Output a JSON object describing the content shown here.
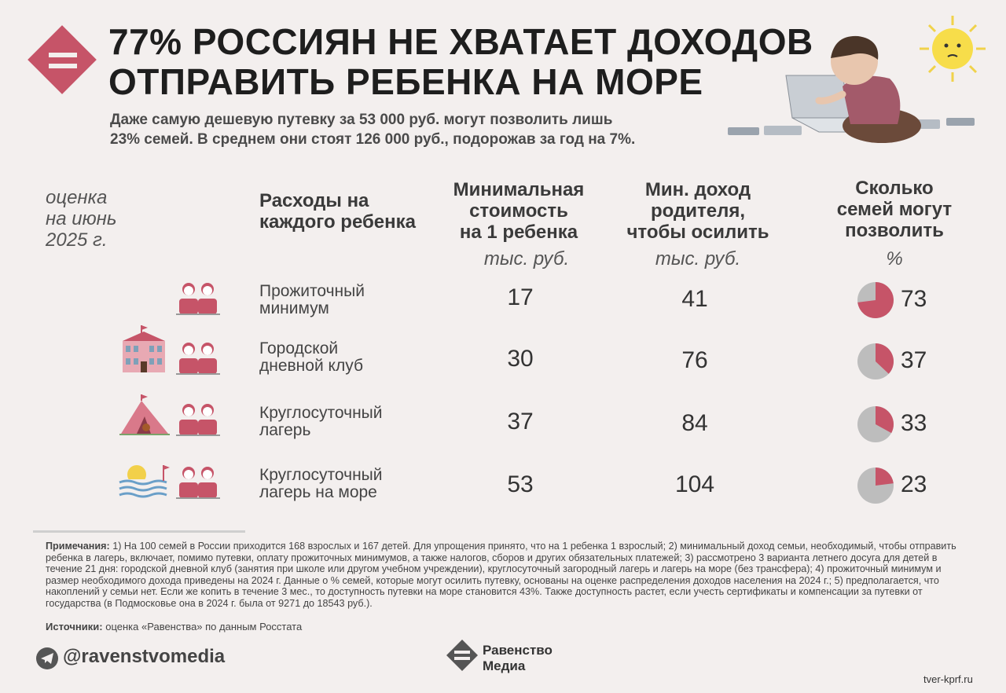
{
  "title_line1": "77% РОССИЯН НЕ ХВАТАЕТ ДОХОДОВ",
  "title_line2": "ОТПРАВИТЬ РЕБЕНКА НА МОРЕ",
  "subtitle_line1": "Даже самую дешевую путевку за 53 000 руб. могут позволить лишь",
  "subtitle_line2": "23% семей. В среднем они стоят 126 000 руб., подорожав за год на 7%.",
  "estimate_label": [
    "оценка",
    "на июнь",
    "2025 г."
  ],
  "headers": {
    "col_expense": [
      "Расходы на",
      "каждого ребенка"
    ],
    "col_min_cost": [
      "Минимальная",
      "стоимость",
      "на 1 ребенка"
    ],
    "col_min_income": [
      "Мин. доход",
      "родителя,",
      "чтобы осилить"
    ],
    "col_share": [
      "Сколько",
      "семей могут",
      "позволить"
    ],
    "unit_cost": "тыс. руб.",
    "unit_income": "тыс. руб.",
    "unit_share": "%"
  },
  "colors": {
    "accent": "#c65468",
    "pie_rest": "#bdbdbd"
  },
  "chart_data": {
    "type": "table",
    "columns": [
      "Расходы на каждого ребенка",
      "Минимальная стоимость на 1 ребенка, тыс. руб.",
      "Мин. доход родителя, чтобы осилить, тыс. руб.",
      "Сколько семей могут позволить, %"
    ],
    "rows": [
      {
        "label": [
          "Прожиточный",
          "минимум"
        ],
        "min_cost": "17",
        "min_income": "41",
        "share": 73,
        "share_text": "73",
        "icon": "children-icon"
      },
      {
        "label": [
          "Городской",
          "дневной клуб"
        ],
        "min_cost": "30",
        "min_income": "76",
        "share": 37,
        "share_text": "37",
        "icon": "school-icon"
      },
      {
        "label": [
          "Круглосуточный",
          "лагерь"
        ],
        "min_cost": "37",
        "min_income": "84",
        "share": 33,
        "share_text": "33",
        "icon": "tent-icon"
      },
      {
        "label": [
          "Круглосуточный",
          "лагерь на море"
        ],
        "min_cost": "53",
        "min_income": "104",
        "share": 23,
        "share_text": "23",
        "icon": "beach-icon"
      }
    ]
  },
  "notes_label": "Примечания:",
  "notes_text": "1) На 100 семей в России приходится 168 взрослых и 167 детей. Для упрощения принято, что на 1 ребенка 1 взрослый; 2) минимальный доход семьи, необходимый, чтобы отправить ребенка в лагерь, включает, помимо путевки, оплату прожиточных минимумов, а также налогов, сборов и других обязательных платежей; 3) рассмотрено 3 варианта летнего досуга для детей в течение 21 дня: городской дневной клуб (занятия при школе или другом учебном учреждении), круглосуточный загородный лагерь и лагерь на море (без трансфера); 4) прожиточный минимум и размер необходимого дохода приведены на 2024 г. Данные о % семей, которые могут осилить путевку, основаны на оценке распределения доходов населения на 2024 г.; 5) предполагается, что накоплений у семьи нет. Если же копить в течение 3 мес., то доступность путевки на море становится 43%. Также доступность растет, если учесть сертификаты и компенсации за путевки от государства (в Подмосковье она в 2024 г. была от 9271 до 18543 руб.).",
  "sources_label": "Источники:",
  "sources_text": "оценка «Равенства» по данным Росстата",
  "telegram": "@ravenstvomedia",
  "brand_line1": "Равенство",
  "brand_line2": "Медиа",
  "watermark": "tver-kprf.ru"
}
